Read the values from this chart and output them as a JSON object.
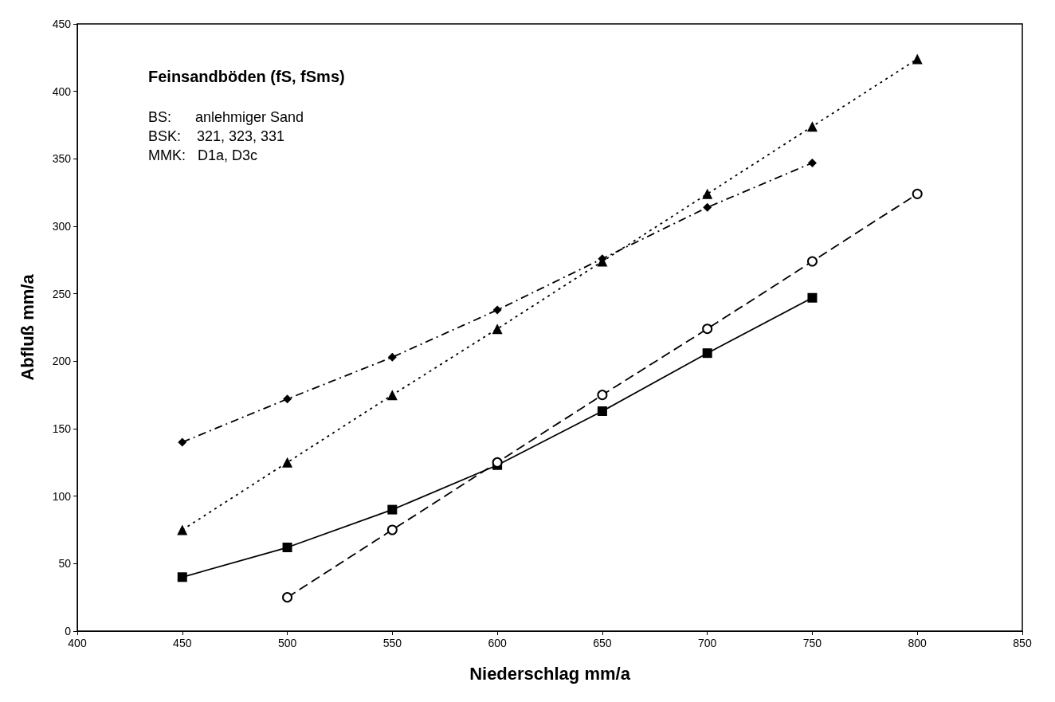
{
  "chart_data": {
    "type": "line",
    "title": "Feinsandböden (fS, fSms)",
    "xlabel": "Niederschlag mm/a",
    "ylabel": "Abfluß mm/a",
    "annotations": [
      "BS:      anlehmiger Sand",
      "BSK:    321, 323, 331",
      "MMK:   D1a, D3c"
    ],
    "xlim": [
      400,
      850
    ],
    "xticks": [
      400,
      450,
      500,
      550,
      600,
      650,
      700,
      750,
      800,
      850
    ],
    "ylim": [
      0,
      450
    ],
    "yticks": [
      0,
      50,
      100,
      150,
      200,
      250,
      300,
      350,
      400,
      450
    ],
    "grid": false,
    "series": [
      {
        "color": "#000000",
        "marker": "diamond",
        "line_style": "dashdot",
        "x": [
          450,
          500,
          550,
          600,
          650,
          700,
          750
        ],
        "values": [
          140,
          172,
          203,
          238,
          276,
          314,
          347
        ]
      },
      {
        "color": "#000000",
        "marker": "triangle",
        "line_style": "dotted",
        "x": [
          450,
          500,
          550,
          600,
          650,
          700,
          750,
          800
        ],
        "values": [
          75,
          125,
          175,
          224,
          274,
          324,
          374,
          424
        ]
      },
      {
        "color": "#000000",
        "marker": "circle",
        "line_style": "dashed",
        "x": [
          500,
          550,
          600,
          650,
          700,
          750,
          800
        ],
        "values": [
          25,
          75,
          125,
          175,
          224,
          274,
          324
        ]
      },
      {
        "color": "#000000",
        "marker": "square",
        "line_style": "solid",
        "x": [
          450,
          500,
          550,
          600,
          650,
          700,
          750
        ],
        "values": [
          40,
          62,
          90,
          123,
          163,
          206,
          247
        ]
      }
    ]
  }
}
